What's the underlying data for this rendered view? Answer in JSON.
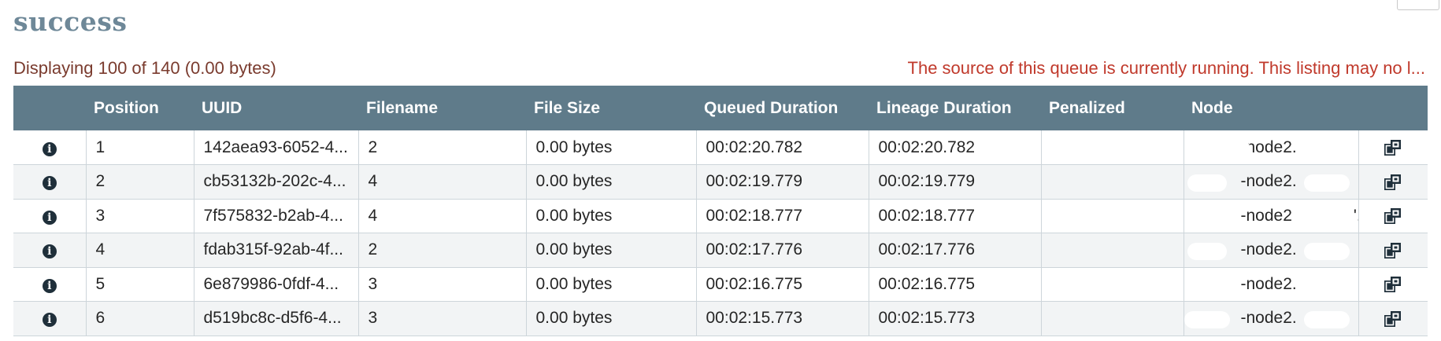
{
  "title": "success",
  "summary": "Displaying 100 of 140 (0.00 bytes)",
  "warning": "The source of this queue is currently running. This listing may no l...",
  "columns": [
    "",
    "Position",
    "UUID",
    "Filename",
    "File Size",
    "Queued Duration",
    "Lineage Duration",
    "Penalized",
    "Node",
    ""
  ],
  "rows": [
    {
      "position": "1",
      "uuid": "142aea93-6052-4...",
      "filename": "2",
      "size": "0.00 bytes",
      "queued": "00:02:20.782",
      "lineage": "00:02:20.782",
      "penalized": "",
      "node": "-node2.",
      "node_tail": "'..."
    },
    {
      "position": "2",
      "uuid": "cb53132b-202c-4...",
      "filename": "4",
      "size": "0.00 bytes",
      "queued": "00:02:19.779",
      "lineage": "00:02:19.779",
      "penalized": "",
      "node": "-node2.",
      "node_tail": "..."
    },
    {
      "position": "3",
      "uuid": "7f575832-b2ab-4...",
      "filename": "4",
      "size": "0.00 bytes",
      "queued": "00:02:18.777",
      "lineage": "00:02:18.777",
      "penalized": "",
      "node": "-node2",
      "node_tail": "'..."
    },
    {
      "position": "4",
      "uuid": "fdab315f-92ab-4f...",
      "filename": "2",
      "size": "0.00 bytes",
      "queued": "00:02:17.776",
      "lineage": "00:02:17.776",
      "penalized": "",
      "node": "-node2.",
      "node_tail": "..."
    },
    {
      "position": "5",
      "uuid": "6e879986-0fdf-4...",
      "filename": "3",
      "size": "0.00 bytes",
      "queued": "00:02:16.775",
      "lineage": "00:02:16.775",
      "penalized": "",
      "node": "-node2.",
      "node_tail": "'..."
    },
    {
      "position": "6",
      "uuid": "d519bc8c-d5f6-4...",
      "filename": "3",
      "size": "0.00 bytes",
      "queued": "00:02:15.773",
      "lineage": "00:02:15.773",
      "penalized": "",
      "node": "-node2.",
      "node_tail": "..."
    }
  ],
  "icons": {
    "row_info": "info-circle-icon",
    "row_action": "provenance-copy-icon"
  },
  "colors": {
    "header_bg": "#5f7b8a",
    "title": "#6e8898",
    "summary": "#7a3b2e",
    "warning": "#c0392b"
  }
}
